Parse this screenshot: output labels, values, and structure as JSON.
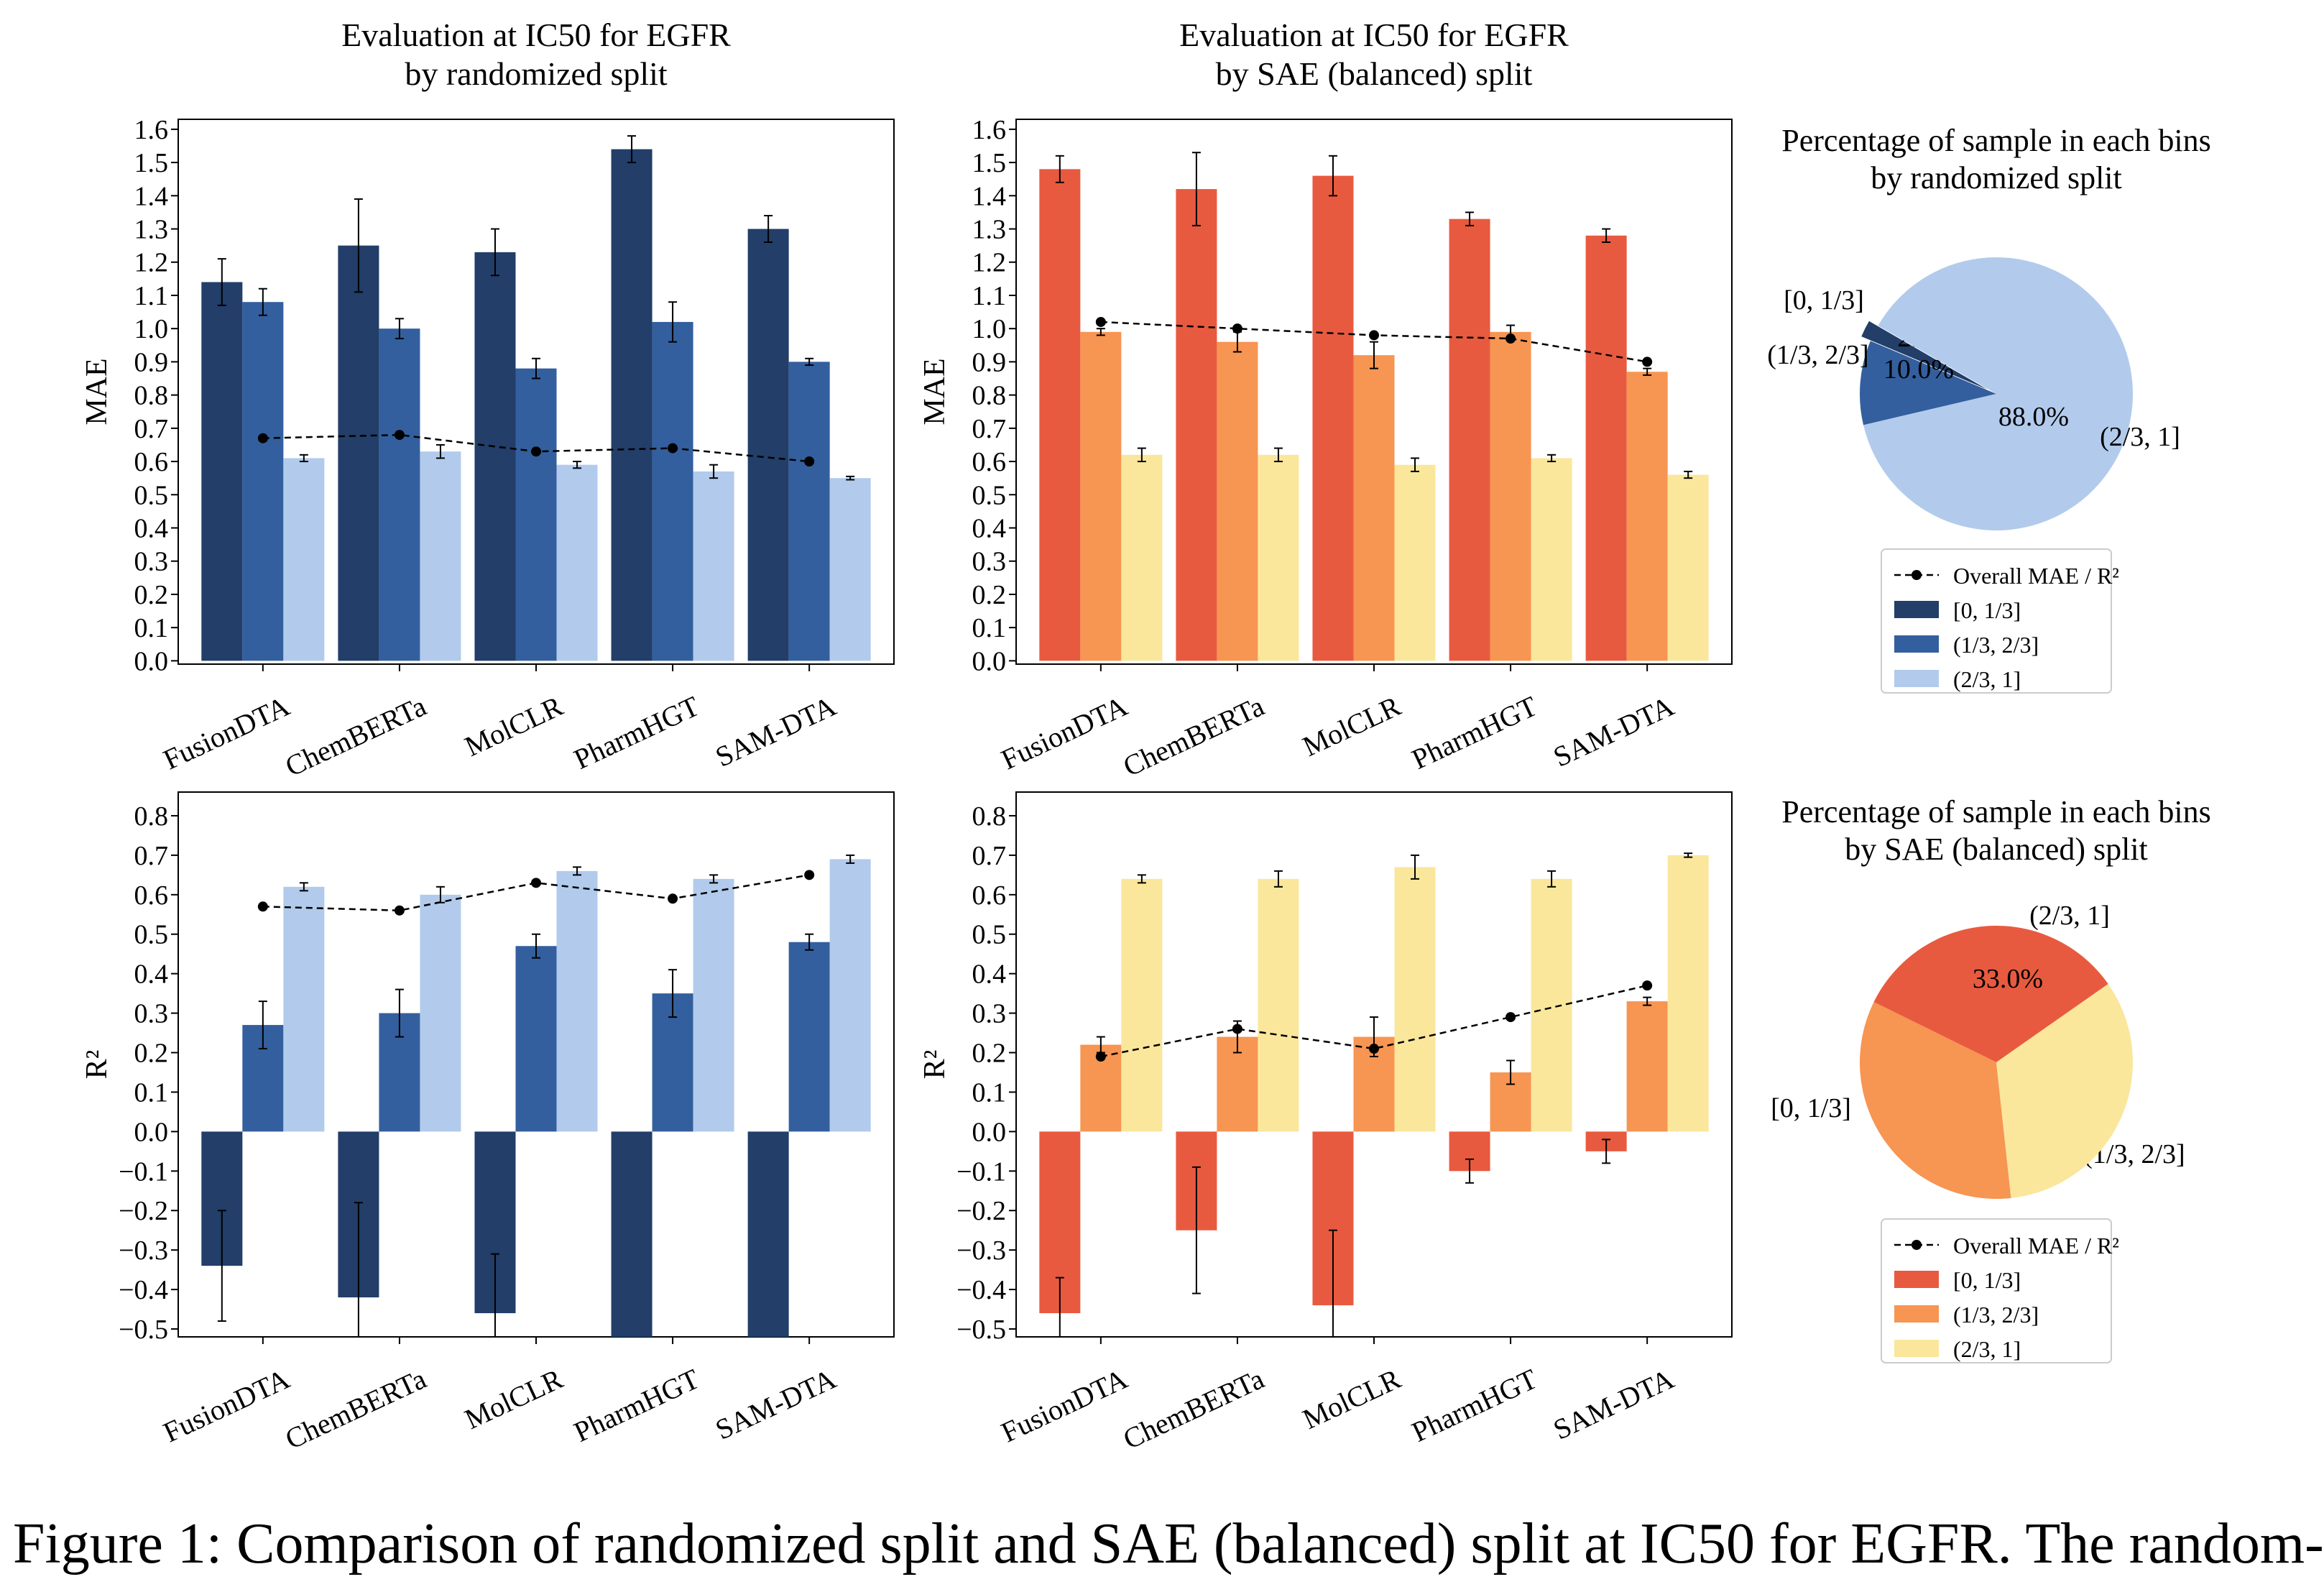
{
  "caption": "Figure 1: Comparison of randomized split and SAE (balanced) split at IC50 for EGFR. The random-",
  "colors": {
    "blue": [
      "#223e69",
      "#335f9e",
      "#b2cbec"
    ],
    "red": [
      "#e85a3f",
      "#f79552",
      "#fae79c"
    ],
    "overall": "#000000"
  },
  "chart_data": [
    {
      "type": "bar",
      "title": "Evaluation at IC50 for EGFR\nby randomized split",
      "xlabel": "",
      "ylabel": "MAE",
      "ylim": [
        -0.01,
        1.63
      ],
      "yticks": [
        "0.0",
        "0.1",
        "0.2",
        "0.3",
        "0.4",
        "0.5",
        "0.6",
        "0.7",
        "0.8",
        "0.9",
        "1.0",
        "1.1",
        "1.2",
        "1.3",
        "1.4",
        "1.5",
        "1.6"
      ],
      "categories": [
        "FusionDTA",
        "ChemBERTa",
        "MolCLR",
        "PharmHGT",
        "SAM-DTA"
      ],
      "palette": "blue",
      "series": [
        {
          "name": "[0, 1/3]",
          "values": [
            1.14,
            1.25,
            1.23,
            1.54,
            1.3
          ],
          "err": [
            0.07,
            0.14,
            0.07,
            0.04,
            0.04
          ]
        },
        {
          "name": "(1/3, 2/3]",
          "values": [
            1.08,
            1.0,
            0.88,
            1.02,
            0.9
          ],
          "err": [
            0.04,
            0.03,
            0.03,
            0.06,
            0.01
          ]
        },
        {
          "name": "(2/3, 1]",
          "values": [
            0.61,
            0.63,
            0.59,
            0.57,
            0.55
          ],
          "err": [
            0.01,
            0.02,
            0.01,
            0.02,
            0.005
          ]
        }
      ],
      "overall": {
        "name": "Overall MAE / R²",
        "values": [
          0.67,
          0.68,
          0.63,
          0.64,
          0.6
        ]
      }
    },
    {
      "type": "bar",
      "title": "Evaluation at IC50 for EGFR\nby SAE (balanced) split",
      "xlabel": "",
      "ylabel": "MAE",
      "ylim": [
        -0.01,
        1.63
      ],
      "yticks": [
        "0.0",
        "0.1",
        "0.2",
        "0.3",
        "0.4",
        "0.5",
        "0.6",
        "0.7",
        "0.8",
        "0.9",
        "1.0",
        "1.1",
        "1.2",
        "1.3",
        "1.4",
        "1.5",
        "1.6"
      ],
      "categories": [
        "FusionDTA",
        "ChemBERTa",
        "MolCLR",
        "PharmHGT",
        "SAM-DTA"
      ],
      "palette": "red",
      "series": [
        {
          "name": "[0, 1/3]",
          "values": [
            1.48,
            1.42,
            1.46,
            1.33,
            1.28
          ],
          "err": [
            0.04,
            0.11,
            0.06,
            0.02,
            0.02
          ]
        },
        {
          "name": "(1/3, 2/3]",
          "values": [
            0.99,
            0.96,
            0.92,
            0.99,
            0.87
          ],
          "err": [
            0.01,
            0.03,
            0.04,
            0.02,
            0.01
          ]
        },
        {
          "name": "(2/3, 1]",
          "values": [
            0.62,
            0.62,
            0.59,
            0.61,
            0.56
          ],
          "err": [
            0.02,
            0.02,
            0.02,
            0.01,
            0.01
          ]
        }
      ],
      "overall": {
        "name": "Overall MAE / R²",
        "values": [
          1.02,
          1.0,
          0.98,
          0.97,
          0.9
        ]
      }
    },
    {
      "type": "bar",
      "title": "",
      "xlabel": "",
      "ylabel": "R²",
      "ylim": [
        -0.52,
        0.86
      ],
      "yticks": [
        "−0.5",
        "−0.4",
        "−0.3",
        "−0.2",
        "−0.1",
        "0.0",
        "0.1",
        "0.2",
        "0.3",
        "0.4",
        "0.5",
        "0.6",
        "0.7",
        "0.8"
      ],
      "categories": [
        "FusionDTA",
        "ChemBERTa",
        "MolCLR",
        "PharmHGT",
        "SAM-DTA"
      ],
      "palette": "blue",
      "series": [
        {
          "name": "[0, 1/3]",
          "values": [
            -0.34,
            -0.42,
            -0.46,
            -0.52,
            -0.52
          ],
          "err": [
            0.14,
            0.24,
            0.15,
            0.0,
            0.0
          ]
        },
        {
          "name": "(1/3, 2/3]",
          "values": [
            0.27,
            0.3,
            0.47,
            0.35,
            0.48
          ],
          "err": [
            0.06,
            0.06,
            0.03,
            0.06,
            0.02
          ]
        },
        {
          "name": "(2/3, 1]",
          "values": [
            0.62,
            0.6,
            0.66,
            0.64,
            0.69
          ],
          "err": [
            0.01,
            0.02,
            0.01,
            0.01,
            0.01
          ]
        }
      ],
      "overall": {
        "name": "Overall MAE / R²",
        "values": [
          0.57,
          0.56,
          0.63,
          0.59,
          0.65
        ]
      }
    },
    {
      "type": "bar",
      "title": "",
      "xlabel": "",
      "ylabel": "R²",
      "ylim": [
        -0.52,
        0.86
      ],
      "yticks": [
        "−0.5",
        "−0.4",
        "−0.3",
        "−0.2",
        "−0.1",
        "0.0",
        "0.1",
        "0.2",
        "0.3",
        "0.4",
        "0.5",
        "0.6",
        "0.7",
        "0.8"
      ],
      "categories": [
        "FusionDTA",
        "ChemBERTa",
        "MolCLR",
        "PharmHGT",
        "SAM-DTA"
      ],
      "palette": "red",
      "series": [
        {
          "name": "[0, 1/3]",
          "values": [
            -0.46,
            -0.25,
            -0.44,
            -0.1,
            -0.05
          ],
          "err": [
            0.09,
            0.16,
            0.19,
            0.03,
            0.03
          ]
        },
        {
          "name": "(1/3, 2/3]",
          "values": [
            0.22,
            0.24,
            0.24,
            0.15,
            0.33
          ],
          "err": [
            0.02,
            0.04,
            0.05,
            0.03,
            0.01
          ]
        },
        {
          "name": "(2/3, 1]",
          "values": [
            0.64,
            0.64,
            0.67,
            0.64,
            0.7
          ],
          "err": [
            0.01,
            0.02,
            0.03,
            0.02,
            0.005
          ]
        }
      ],
      "overall": {
        "name": "Overall MAE / R²",
        "values": [
          0.19,
          0.26,
          0.21,
          0.29,
          0.37
        ]
      }
    },
    {
      "type": "pie",
      "title": "Percentage of sample in each bins\nby randomized split",
      "palette": "blue",
      "slices": [
        {
          "label": "[0, 1/3]",
          "value": 2.0,
          "pct": "2.0%"
        },
        {
          "label": "(1/3, 2/3]",
          "value": 10.0,
          "pct": "10.0%"
        },
        {
          "label": "(2/3, 1]",
          "value": 88.0,
          "pct": "88.0%"
        }
      ],
      "legend": [
        "Overall MAE / R²",
        "[0, 1/3]",
        "(1/3, 2/3]",
        "(2/3, 1]"
      ]
    },
    {
      "type": "pie",
      "title": "Percentage of sample in each bins\nby SAE (balanced) split",
      "palette": "red",
      "slices": [
        {
          "label": "[0, 1/3]",
          "value": 33.0,
          "pct": "33.0%"
        },
        {
          "label": "(1/3, 2/3]",
          "value": 34.0,
          "pct": "34.0%"
        },
        {
          "label": "(2/3, 1]",
          "value": 33.0,
          "pct": "33.0%"
        }
      ],
      "legend": [
        "Overall MAE / R²",
        "[0, 1/3]",
        "(1/3, 2/3]",
        "(2/3, 1]"
      ]
    }
  ]
}
